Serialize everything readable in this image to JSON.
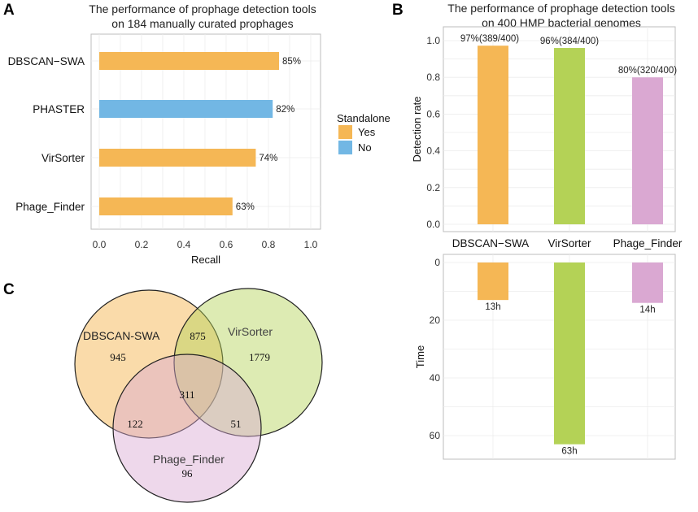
{
  "panel_labels": {
    "a": "A",
    "b": "B",
    "c": "C"
  },
  "colors": {
    "yes": "#f5b755",
    "no": "#72b7e4",
    "dbscan": "#f5b755",
    "virsorter": "#b4d256",
    "phage_finder": "#daa8d2",
    "grid": "#e3e3e3",
    "frame": "#bdbdbd"
  },
  "chart_data": [
    {
      "id": "A",
      "type": "bar",
      "orientation": "horizontal",
      "title": [
        "The performance of prophage detection tools",
        "on 184 manually curated prophages"
      ],
      "categories": [
        "DBSCAN−SWA",
        "PHASTER",
        "VirSorter",
        "Phage_Finder"
      ],
      "values": [
        0.85,
        0.82,
        0.74,
        0.63
      ],
      "data_labels": [
        "85%",
        "82%",
        "74%",
        "63%"
      ],
      "standalone": [
        "Yes",
        "No",
        "Yes",
        "Yes"
      ],
      "xlabel": "Recall",
      "ylabel": "",
      "xlim": [
        0,
        1
      ],
      "xticks": [
        "0.0",
        "0.2",
        "0.4",
        "0.6",
        "0.8",
        "1.0"
      ],
      "legend": {
        "title": "Standalone",
        "entries": [
          "Yes",
          "No"
        ],
        "position": "right"
      }
    },
    {
      "id": "B-top",
      "type": "bar",
      "title": [
        "The performance of prophage detection tools",
        "on 400 HMP bacterial genomes"
      ],
      "categories": [
        "DBSCAN−SWA",
        "VirSorter",
        "Phage_Finder"
      ],
      "values": [
        0.9725,
        0.96,
        0.8
      ],
      "data_labels": [
        "97%(389/400)",
        "96%(384/400)",
        "80%(320/400)"
      ],
      "ylabel": "Detection rate",
      "ylim": [
        0,
        1.05
      ],
      "yticks": [
        "0.0",
        "0.2",
        "0.4",
        "0.6",
        "0.8",
        "1.0"
      ]
    },
    {
      "id": "B-bottom",
      "type": "bar",
      "categories": [
        "DBSCAN−SWA",
        "VirSorter",
        "Phage_Finder"
      ],
      "values": [
        13,
        63,
        14
      ],
      "data_labels": [
        "13h",
        "63h",
        "14h"
      ],
      "ylabel": "Time",
      "ylim": [
        0,
        65
      ],
      "yaxis_reversed": true,
      "yticks": [
        "0",
        "20",
        "40",
        "60"
      ]
    },
    {
      "id": "C",
      "type": "venn",
      "sets": [
        "DBSCAN-SWA",
        "VirSorter",
        "Phage_Finder"
      ],
      "regions": {
        "dbscan_only": "945",
        "virsorter_only": "1779",
        "phage_finder_only": "96",
        "dbscan_virsorter": "875",
        "dbscan_phage_finder": "122",
        "virsorter_phage_finder": "51",
        "all_three": "311"
      }
    }
  ]
}
